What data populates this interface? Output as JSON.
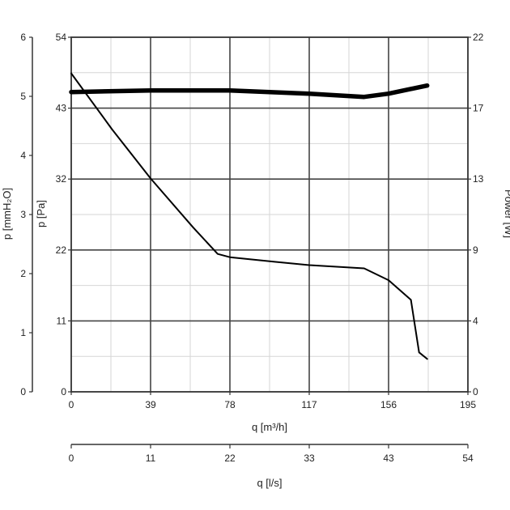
{
  "chart_data": {
    "type": "line",
    "grid": true,
    "xlabel": "q [m³/h]",
    "xlabel2": "q [l/s]",
    "ylabel_left_outer": "p  [mmH₂O]",
    "ylabel_left_inner": "p  [Pa]",
    "ylabel_right": "Power [W]",
    "x_ticks": [
      "0",
      "39",
      "78",
      "117",
      "156",
      "195"
    ],
    "x2_ticks": [
      "0",
      "11",
      "22",
      "33",
      "43",
      "54"
    ],
    "y_ticks_pa": [
      "0",
      "11",
      "22",
      "32",
      "43",
      "54"
    ],
    "y_ticks_mmh2o": [
      "0",
      "1",
      "2",
      "3",
      "4",
      "5",
      "6"
    ],
    "y_ticks_power": [
      "0",
      "4",
      "9",
      "13",
      "17",
      "22"
    ],
    "xlim": [
      0,
      195
    ],
    "ylim_pa": [
      0,
      54
    ],
    "ylim_power": [
      0,
      22
    ],
    "series": [
      {
        "axis": "pressure",
        "x": [
          0,
          20,
          39,
          60,
          72,
          78,
          100,
          117,
          144,
          156,
          167,
          171,
          175
        ],
        "y": [
          48.5,
          40,
          32.5,
          25,
          21,
          20.5,
          19.8,
          19.3,
          18.8,
          17,
          14,
          6,
          5
        ]
      },
      {
        "axis": "power",
        "x": [
          0,
          39,
          78,
          117,
          144,
          156,
          175
        ],
        "y": [
          18.6,
          18.7,
          18.7,
          18.5,
          18.3,
          18.5,
          19.0
        ]
      }
    ]
  }
}
